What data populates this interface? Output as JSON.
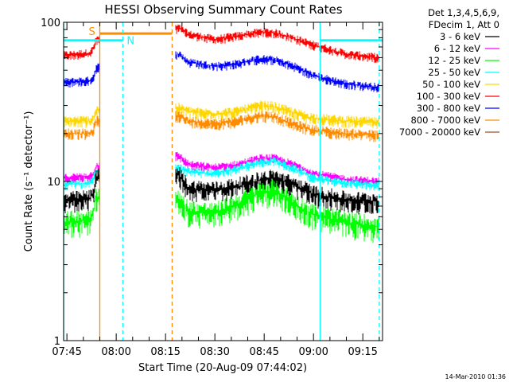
{
  "chart_data": {
    "type": "line",
    "title": "HESSI Observing Summary Count Rates",
    "xlabel": "Start Time (20-Aug-09 07:44:02)",
    "ylabel": "Count Rate (s⁻¹ detector⁻¹)",
    "ylim": [
      1,
      100
    ],
    "yscale": "log",
    "xlim": [
      "07:44",
      "09:21"
    ],
    "x_ticks": [
      "07:45",
      "08:00",
      "08:15",
      "08:30",
      "08:45",
      "09:00",
      "09:15"
    ],
    "y_ticks": [
      "1",
      "10",
      "100"
    ],
    "legend_header": [
      "Det 1,3,4,5,6,9,",
      "FDecim 1, Att 0"
    ],
    "legend_position": "outside-right",
    "series": [
      {
        "name": "3 - 6 keV",
        "color": "#000000",
        "x": [
          "07:44",
          "07:52",
          "07:53",
          "07:54",
          "08:19",
          "08:22",
          "08:30",
          "08:37",
          "08:44",
          "08:48",
          "08:55",
          "09:00",
          "09:10",
          "09:20"
        ],
        "y": [
          7.5,
          7.8,
          8.5,
          10.5,
          11,
          9.0,
          8.8,
          9.3,
          10.2,
          10.5,
          9.3,
          8.3,
          7.6,
          7.5
        ]
      },
      {
        "name": "6 - 12 keV",
        "color": "#ff00ff",
        "x": [
          "07:44",
          "07:52",
          "07:53",
          "07:54",
          "08:19",
          "08:22",
          "08:30",
          "08:37",
          "08:44",
          "08:48",
          "08:55",
          "09:00",
          "09:10",
          "09:20"
        ],
        "y": [
          10.5,
          10.8,
          11.2,
          12.5,
          14.5,
          12.8,
          12.2,
          12.8,
          14.0,
          14.0,
          12.5,
          11.2,
          10.3,
          10.0
        ]
      },
      {
        "name": "12 - 25 keV",
        "color": "#00ff00",
        "x": [
          "07:44",
          "07:52",
          "07:53",
          "07:54",
          "08:19",
          "08:22",
          "08:30",
          "08:37",
          "08:44",
          "08:48",
          "08:55",
          "09:00",
          "09:10",
          "09:20"
        ],
        "y": [
          5.5,
          5.8,
          6.5,
          8.0,
          7.5,
          6.5,
          6.3,
          7.2,
          8.5,
          8.8,
          7.0,
          6.2,
          5.5,
          5.2
        ]
      },
      {
        "name": "25 - 50 keV",
        "color": "#00ffff",
        "x": [
          "07:44",
          "07:52",
          "07:53",
          "07:54",
          "08:19",
          "08:22",
          "08:30",
          "08:37",
          "08:44",
          "08:48",
          "08:55",
          "09:00",
          "09:10",
          "09:20"
        ],
        "y": [
          9.5,
          9.8,
          10.5,
          11.5,
          12.2,
          11.5,
          11.2,
          12.0,
          13.2,
          13.5,
          11.8,
          10.5,
          9.8,
          9.5
        ]
      },
      {
        "name": "50 - 100 keV",
        "color": "#ffd700",
        "x": [
          "07:44",
          "07:52",
          "07:53",
          "07:54",
          "08:19",
          "08:22",
          "08:30",
          "08:37",
          "08:44",
          "08:48",
          "08:55",
          "09:00",
          "09:10",
          "09:20"
        ],
        "y": [
          24,
          24,
          25,
          28,
          29,
          27.5,
          26.5,
          27.5,
          30,
          29.5,
          26.5,
          25,
          24,
          23.5
        ]
      },
      {
        "name": "100 - 300 keV",
        "color": "#ff0000",
        "x": [
          "07:44",
          "07:52",
          "07:53",
          "07:54",
          "08:19",
          "08:22",
          "08:30",
          "08:37",
          "08:44",
          "08:48",
          "08:55",
          "09:00",
          "09:10",
          "09:20"
        ],
        "y": [
          62,
          64,
          68,
          78,
          92,
          84,
          78,
          82,
          87,
          86,
          78,
          72,
          63,
          60
        ]
      },
      {
        "name": "300 - 800 keV",
        "color": "#0000ff",
        "x": [
          "07:44",
          "07:52",
          "07:53",
          "07:54",
          "08:19",
          "08:22",
          "08:30",
          "08:37",
          "08:44",
          "08:48",
          "08:55",
          "09:00",
          "09:10",
          "09:20"
        ],
        "y": [
          42,
          43,
          45,
          52,
          63,
          56,
          53,
          55,
          59,
          58,
          52,
          46,
          41,
          39
        ]
      },
      {
        "name": "800 - 7000 keV",
        "color": "#ff8c00",
        "x": [
          "07:44",
          "07:52",
          "07:53",
          "07:54",
          "08:19",
          "08:22",
          "08:30",
          "08:37",
          "08:44",
          "08:48",
          "08:55",
          "09:00",
          "09:10",
          "09:20"
        ],
        "y": [
          20,
          20,
          21,
          24,
          26,
          24,
          23,
          24,
          26,
          25.5,
          22.5,
          21,
          20,
          19.5
        ]
      },
      {
        "name": "7000 - 20000 keV",
        "color": "#a0522d",
        "x": [],
        "y": []
      }
    ],
    "annotations": [
      {
        "text": "S",
        "color": "#ff8c00"
      },
      {
        "text": "N",
        "color": "#00ffff"
      }
    ],
    "saa_interval": {
      "start": "07:55",
      "end": "08:17",
      "y": 85,
      "color": "#ff8c00"
    },
    "night_intervals": [
      {
        "start": "07:44",
        "end": "08:02",
        "y": 77,
        "color": "#00ffff"
      },
      {
        "start": "09:02",
        "end": "09:21",
        "y": 77,
        "color": "#00ffff"
      }
    ],
    "vertical_markers": [
      {
        "time": "07:44",
        "color": "#00ffff",
        "style": "solid"
      },
      {
        "time": "07:55",
        "color": "#ff8c00",
        "style": "solid"
      },
      {
        "time": "08:02",
        "color": "#00ffff",
        "style": "dashed"
      },
      {
        "time": "08:17",
        "color": "#ff8c00",
        "style": "dashed"
      },
      {
        "time": "09:02",
        "color": "#00ffff",
        "style": "solid"
      },
      {
        "time": "09:20",
        "color": "#00ffff",
        "style": "dashed"
      }
    ],
    "gaps": [
      {
        "start": "07:55",
        "end": "08:18"
      }
    ],
    "grid": false
  },
  "timestamp": "14-Mar-2010 01:36"
}
